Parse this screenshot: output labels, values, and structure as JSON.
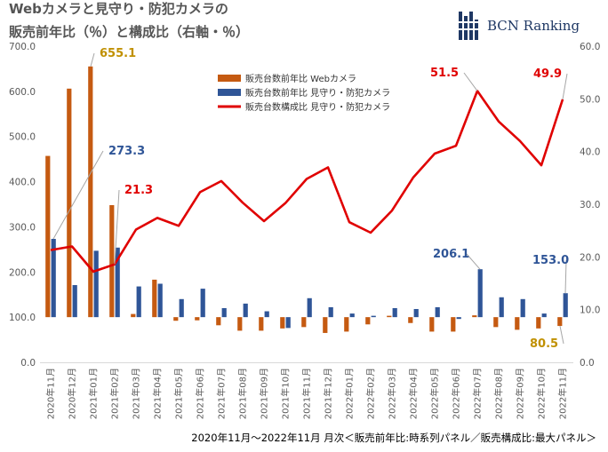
{
  "chart_data": {
    "type": "bar+line",
    "title_lines": [
      "Webカメラと見守り・防犯カメラの",
      "販売前年比（％）と構成比（右軸・％）"
    ],
    "logo": "BCN Ranking",
    "footnote": "2020年11月〜2022年11月 月次＜販売前年比:時系列パネル／販売構成比:最大パネル＞",
    "categories": [
      "2020年11月",
      "2020年12月",
      "2021年01月",
      "2021年02月",
      "2021年03月",
      "2021年04月",
      "2021年05月",
      "2021年06月",
      "2021年07月",
      "2021年08月",
      "2021年09月",
      "2021年10月",
      "2021年11月",
      "2021年12月",
      "2022年01月",
      "2022年02月",
      "2022年03月",
      "2022年04月",
      "2022年05月",
      "2022年06月",
      "2022年07月",
      "2022年08月",
      "2022年09月",
      "2022年10月",
      "2022年11月"
    ],
    "y_left": {
      "min": 0,
      "max": 700,
      "step": 100,
      "tick_labels": [
        "0.0",
        "100.0",
        "200.0",
        "300.0",
        "400.0",
        "500.0",
        "600.0",
        "700.0"
      ]
    },
    "y_right": {
      "min": 0,
      "max": 60,
      "step": 10,
      "tick_labels": [
        "0.0",
        "10.0",
        "20.0",
        "30.0",
        "40.0",
        "50.0",
        "60.0"
      ]
    },
    "bar_baseline": 100,
    "series": [
      {
        "name": "販売台数前年比 Webカメラ",
        "kind": "bar",
        "axis": "left",
        "color": "#c55a11",
        "values": [
          457,
          606,
          655.1,
          348,
          107,
          183,
          92,
          93,
          82,
          70,
          70,
          75,
          78,
          65,
          68,
          84,
          103,
          87,
          68,
          68,
          104,
          78,
          72,
          75,
          80.5
        ]
      },
      {
        "name": "販売台数前年比 見守り・防犯カメラ",
        "kind": "bar",
        "axis": "left",
        "color": "#2f5597",
        "values": [
          273.3,
          171,
          247,
          254,
          168,
          174,
          140,
          163,
          120,
          130,
          113,
          76,
          142,
          122,
          108,
          103,
          120,
          118,
          122,
          96,
          206.1,
          144,
          140,
          108,
          153.0
        ]
      },
      {
        "name": "販売台数構成比 見守り・防犯カメラ",
        "kind": "line",
        "axis": "right",
        "color": "#e00000",
        "values": [
          21.3,
          22.0,
          17.2,
          18.6,
          25.2,
          27.4,
          25.9,
          32.3,
          34.4,
          30.3,
          26.8,
          30.2,
          34.8,
          37.0,
          26.6,
          24.6,
          28.8,
          35.1,
          39.6,
          41.1,
          51.5,
          45.7,
          42.0,
          37.4,
          49.9
        ]
      }
    ],
    "annotations": [
      {
        "label": "655.1",
        "color": "#c09000"
      },
      {
        "label": "273.3",
        "color": "#2f5597"
      },
      {
        "label": "21.3",
        "color": "#e00000"
      },
      {
        "label": "51.5",
        "color": "#e00000"
      },
      {
        "label": "49.9",
        "color": "#e00000"
      },
      {
        "label": "206.1",
        "color": "#2f5597"
      },
      {
        "label": "153.0",
        "color": "#2f5597"
      },
      {
        "label": "80.5",
        "color": "#c09000"
      }
    ],
    "legend_placement": "top-center",
    "grid": false
  }
}
